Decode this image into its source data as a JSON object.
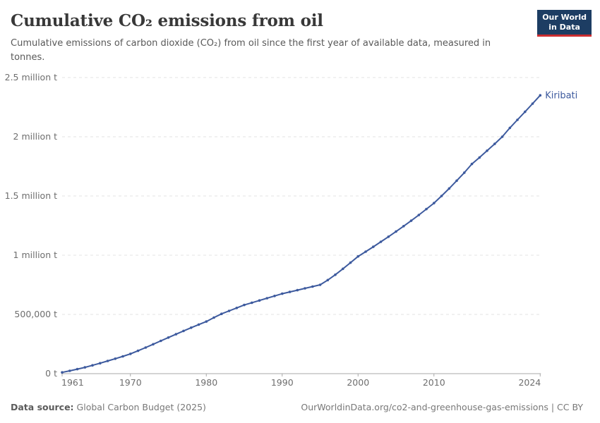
{
  "header": {
    "title": "Cumulative CO₂ emissions from oil",
    "subtitle": "Cumulative emissions of carbon dioxide (CO₂) from oil since the first year of available data, measured in tonnes.",
    "logo": {
      "line1": "Our World",
      "line2": "in Data"
    }
  },
  "footer": {
    "source_label": "Data source:",
    "source_text": "Global Carbon Budget (2025)",
    "url_license": "OurWorldinData.org/co2-and-greenhouse-gas-emissions | CC BY"
  },
  "colors": {
    "line": "#3d5a9e",
    "grid": "#e3e3e3",
    "axis": "#a8a8a8",
    "tick_text": "#6e6e6e",
    "logo_bg": "#1d3d63",
    "logo_accent": "#cb2d30"
  },
  "chart_data": {
    "type": "line",
    "title": "Cumulative CO₂ emissions from oil",
    "xlabel": "",
    "ylabel": "",
    "unit": "t",
    "grid": "dashed-horizontal",
    "legend_position": "end-of-line-label",
    "x": {
      "range": [
        1961,
        2024
      ],
      "ticks": [
        1961,
        1970,
        1980,
        1990,
        2000,
        2010,
        2024
      ],
      "tick_labels": [
        "1961",
        "1970",
        "1980",
        "1990",
        "2000",
        "2010",
        "2024"
      ]
    },
    "y": {
      "range": [
        0,
        2500000
      ],
      "ticks": [
        0,
        500000,
        1000000,
        1500000,
        2000000,
        2500000
      ],
      "tick_labels": [
        "0 t",
        "500,000 t",
        "1 million t",
        "1.5 million t",
        "2 million t",
        "2.5 million t"
      ]
    },
    "series": [
      {
        "name": "Kiribati",
        "color": "#3d5a9e",
        "points": [
          [
            1961,
            11000
          ],
          [
            1962,
            24000
          ],
          [
            1963,
            38000
          ],
          [
            1964,
            53000
          ],
          [
            1965,
            70000
          ],
          [
            1966,
            88000
          ],
          [
            1967,
            107000
          ],
          [
            1968,
            126000
          ],
          [
            1969,
            146000
          ],
          [
            1970,
            167000
          ],
          [
            1971,
            193000
          ],
          [
            1972,
            220000
          ],
          [
            1973,
            248000
          ],
          [
            1974,
            277000
          ],
          [
            1975,
            305000
          ],
          [
            1976,
            333000
          ],
          [
            1977,
            361000
          ],
          [
            1978,
            388000
          ],
          [
            1979,
            414000
          ],
          [
            1980,
            440000
          ],
          [
            1981,
            473000
          ],
          [
            1982,
            505000
          ],
          [
            1983,
            530000
          ],
          [
            1984,
            555000
          ],
          [
            1985,
            580000
          ],
          [
            1986,
            599000
          ],
          [
            1987,
            618000
          ],
          [
            1988,
            637000
          ],
          [
            1989,
            656000
          ],
          [
            1990,
            675000
          ],
          [
            1991,
            690000
          ],
          [
            1992,
            705000
          ],
          [
            1993,
            720000
          ],
          [
            1994,
            735000
          ],
          [
            1995,
            750000
          ],
          [
            1996,
            790000
          ],
          [
            1997,
            835000
          ],
          [
            1998,
            885000
          ],
          [
            1999,
            937000
          ],
          [
            2000,
            990000
          ],
          [
            2001,
            1030000
          ],
          [
            2002,
            1071000
          ],
          [
            2003,
            1113000
          ],
          [
            2004,
            1156000
          ],
          [
            2005,
            1200000
          ],
          [
            2006,
            1245000
          ],
          [
            2007,
            1291000
          ],
          [
            2008,
            1339000
          ],
          [
            2009,
            1389000
          ],
          [
            2010,
            1440000
          ],
          [
            2011,
            1500000
          ],
          [
            2012,
            1563000
          ],
          [
            2013,
            1629000
          ],
          [
            2014,
            1697000
          ],
          [
            2015,
            1770000
          ],
          [
            2016,
            1825000
          ],
          [
            2017,
            1882000
          ],
          [
            2018,
            1940000
          ],
          [
            2019,
            2000000
          ],
          [
            2020,
            2075000
          ],
          [
            2021,
            2143000
          ],
          [
            2022,
            2211000
          ],
          [
            2023,
            2280000
          ],
          [
            2024,
            2350000
          ]
        ]
      }
    ]
  }
}
